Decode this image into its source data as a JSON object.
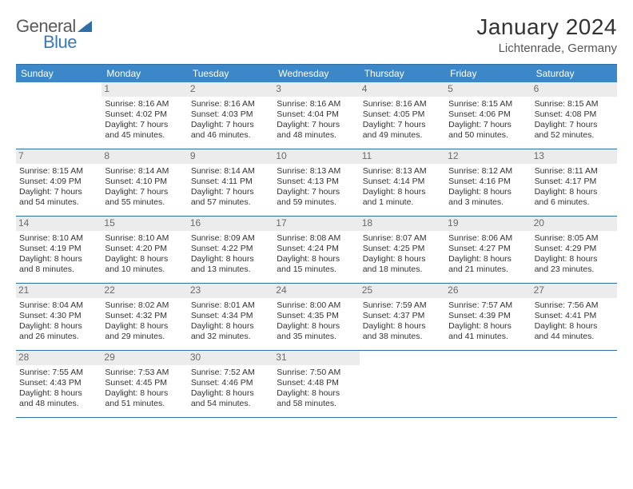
{
  "logo": {
    "word1": "General",
    "word2": "Blue",
    "mark_color": "#2f6fa8"
  },
  "title": "January 2024",
  "location": "Lichtenrade, Germany",
  "header_bg": "#3c87c7",
  "daynum_bg": "#ececec",
  "border_color": "#2f6fa8",
  "day_headers": [
    "Sunday",
    "Monday",
    "Tuesday",
    "Wednesday",
    "Thursday",
    "Friday",
    "Saturday"
  ],
  "first_weekday_index": 1,
  "days": [
    {
      "n": 1,
      "sr": "8:16 AM",
      "ss": "4:02 PM",
      "d1": "7 hours",
      "d2": "and 45 minutes."
    },
    {
      "n": 2,
      "sr": "8:16 AM",
      "ss": "4:03 PM",
      "d1": "7 hours",
      "d2": "and 46 minutes."
    },
    {
      "n": 3,
      "sr": "8:16 AM",
      "ss": "4:04 PM",
      "d1": "7 hours",
      "d2": "and 48 minutes."
    },
    {
      "n": 4,
      "sr": "8:16 AM",
      "ss": "4:05 PM",
      "d1": "7 hours",
      "d2": "and 49 minutes."
    },
    {
      "n": 5,
      "sr": "8:15 AM",
      "ss": "4:06 PM",
      "d1": "7 hours",
      "d2": "and 50 minutes."
    },
    {
      "n": 6,
      "sr": "8:15 AM",
      "ss": "4:08 PM",
      "d1": "7 hours",
      "d2": "and 52 minutes."
    },
    {
      "n": 7,
      "sr": "8:15 AM",
      "ss": "4:09 PM",
      "d1": "7 hours",
      "d2": "and 54 minutes."
    },
    {
      "n": 8,
      "sr": "8:14 AM",
      "ss": "4:10 PM",
      "d1": "7 hours",
      "d2": "and 55 minutes."
    },
    {
      "n": 9,
      "sr": "8:14 AM",
      "ss": "4:11 PM",
      "d1": "7 hours",
      "d2": "and 57 minutes."
    },
    {
      "n": 10,
      "sr": "8:13 AM",
      "ss": "4:13 PM",
      "d1": "7 hours",
      "d2": "and 59 minutes."
    },
    {
      "n": 11,
      "sr": "8:13 AM",
      "ss": "4:14 PM",
      "d1": "8 hours",
      "d2": "and 1 minute."
    },
    {
      "n": 12,
      "sr": "8:12 AM",
      "ss": "4:16 PM",
      "d1": "8 hours",
      "d2": "and 3 minutes."
    },
    {
      "n": 13,
      "sr": "8:11 AM",
      "ss": "4:17 PM",
      "d1": "8 hours",
      "d2": "and 6 minutes."
    },
    {
      "n": 14,
      "sr": "8:10 AM",
      "ss": "4:19 PM",
      "d1": "8 hours",
      "d2": "and 8 minutes."
    },
    {
      "n": 15,
      "sr": "8:10 AM",
      "ss": "4:20 PM",
      "d1": "8 hours",
      "d2": "and 10 minutes."
    },
    {
      "n": 16,
      "sr": "8:09 AM",
      "ss": "4:22 PM",
      "d1": "8 hours",
      "d2": "and 13 minutes."
    },
    {
      "n": 17,
      "sr": "8:08 AM",
      "ss": "4:24 PM",
      "d1": "8 hours",
      "d2": "and 15 minutes."
    },
    {
      "n": 18,
      "sr": "8:07 AM",
      "ss": "4:25 PM",
      "d1": "8 hours",
      "d2": "and 18 minutes."
    },
    {
      "n": 19,
      "sr": "8:06 AM",
      "ss": "4:27 PM",
      "d1": "8 hours",
      "d2": "and 21 minutes."
    },
    {
      "n": 20,
      "sr": "8:05 AM",
      "ss": "4:29 PM",
      "d1": "8 hours",
      "d2": "and 23 minutes."
    },
    {
      "n": 21,
      "sr": "8:04 AM",
      "ss": "4:30 PM",
      "d1": "8 hours",
      "d2": "and 26 minutes."
    },
    {
      "n": 22,
      "sr": "8:02 AM",
      "ss": "4:32 PM",
      "d1": "8 hours",
      "d2": "and 29 minutes."
    },
    {
      "n": 23,
      "sr": "8:01 AM",
      "ss": "4:34 PM",
      "d1": "8 hours",
      "d2": "and 32 minutes."
    },
    {
      "n": 24,
      "sr": "8:00 AM",
      "ss": "4:35 PM",
      "d1": "8 hours",
      "d2": "and 35 minutes."
    },
    {
      "n": 25,
      "sr": "7:59 AM",
      "ss": "4:37 PM",
      "d1": "8 hours",
      "d2": "and 38 minutes."
    },
    {
      "n": 26,
      "sr": "7:57 AM",
      "ss": "4:39 PM",
      "d1": "8 hours",
      "d2": "and 41 minutes."
    },
    {
      "n": 27,
      "sr": "7:56 AM",
      "ss": "4:41 PM",
      "d1": "8 hours",
      "d2": "and 44 minutes."
    },
    {
      "n": 28,
      "sr": "7:55 AM",
      "ss": "4:43 PM",
      "d1": "8 hours",
      "d2": "and 48 minutes."
    },
    {
      "n": 29,
      "sr": "7:53 AM",
      "ss": "4:45 PM",
      "d1": "8 hours",
      "d2": "and 51 minutes."
    },
    {
      "n": 30,
      "sr": "7:52 AM",
      "ss": "4:46 PM",
      "d1": "8 hours",
      "d2": "and 54 minutes."
    },
    {
      "n": 31,
      "sr": "7:50 AM",
      "ss": "4:48 PM",
      "d1": "8 hours",
      "d2": "and 58 minutes."
    }
  ],
  "labels": {
    "sunrise": "Sunrise:",
    "sunset": "Sunset:",
    "daylight": "Daylight:"
  }
}
